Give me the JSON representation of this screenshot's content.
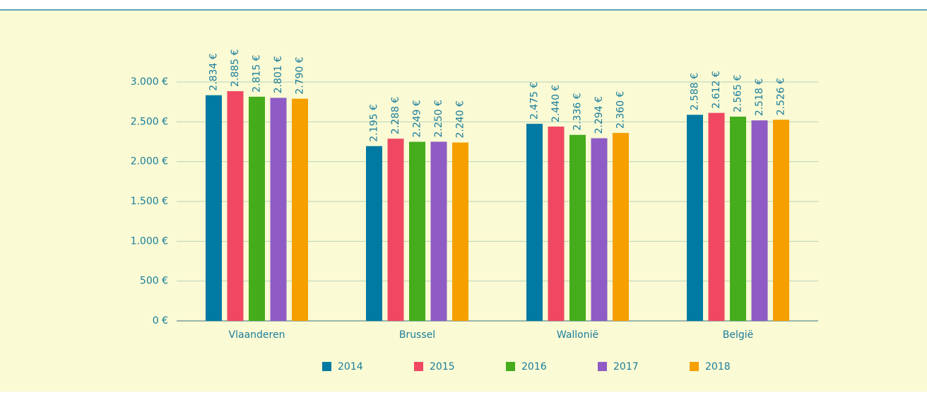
{
  "chart_data": {
    "type": "bar",
    "categories": [
      "Vlaanderen",
      "Brussel",
      "Wallonië",
      "België"
    ],
    "series": [
      {
        "name": "2014",
        "color": "#0079a3",
        "values": [
          2834,
          2195,
          2475,
          2588
        ],
        "value_labels": [
          "2.834 €",
          "2.195 €",
          "2.475 €",
          "2.588 €"
        ]
      },
      {
        "name": "2015",
        "color": "#f04862",
        "values": [
          2885,
          2288,
          2440,
          2612
        ],
        "value_labels": [
          "2.885 €",
          "2.288 €",
          "2.440 €",
          "2.612 €"
        ]
      },
      {
        "name": "2016",
        "color": "#45ad1c",
        "values": [
          2815,
          2249,
          2336,
          2565
        ],
        "value_labels": [
          "2.815 €",
          "2.249 €",
          "2.336 €",
          "2.565 €"
        ]
      },
      {
        "name": "2017",
        "color": "#8e5cc4",
        "values": [
          2801,
          2250,
          2294,
          2518
        ],
        "value_labels": [
          "2.801 €",
          "2.250 €",
          "2.294 €",
          "2.518 €"
        ]
      },
      {
        "name": "2018",
        "color": "#f59f00",
        "values": [
          2790,
          2240,
          2360,
          2526
        ],
        "value_labels": [
          "2.790 €",
          "2.240 €",
          "2.360 €",
          "2.526 €"
        ]
      }
    ],
    "ylim": [
      0,
      3000
    ],
    "yticks": [
      {
        "value": 0,
        "label": "0 €"
      },
      {
        "value": 500,
        "label": "500 €"
      },
      {
        "value": 1000,
        "label": "1.000 €"
      },
      {
        "value": 1500,
        "label": "1.500 €"
      },
      {
        "value": 2000,
        "label": "2.000 €"
      },
      {
        "value": 2500,
        "label": "2.500 €"
      },
      {
        "value": 3000,
        "label": "3.000 €"
      }
    ],
    "grid": true,
    "legend": "bottom"
  }
}
